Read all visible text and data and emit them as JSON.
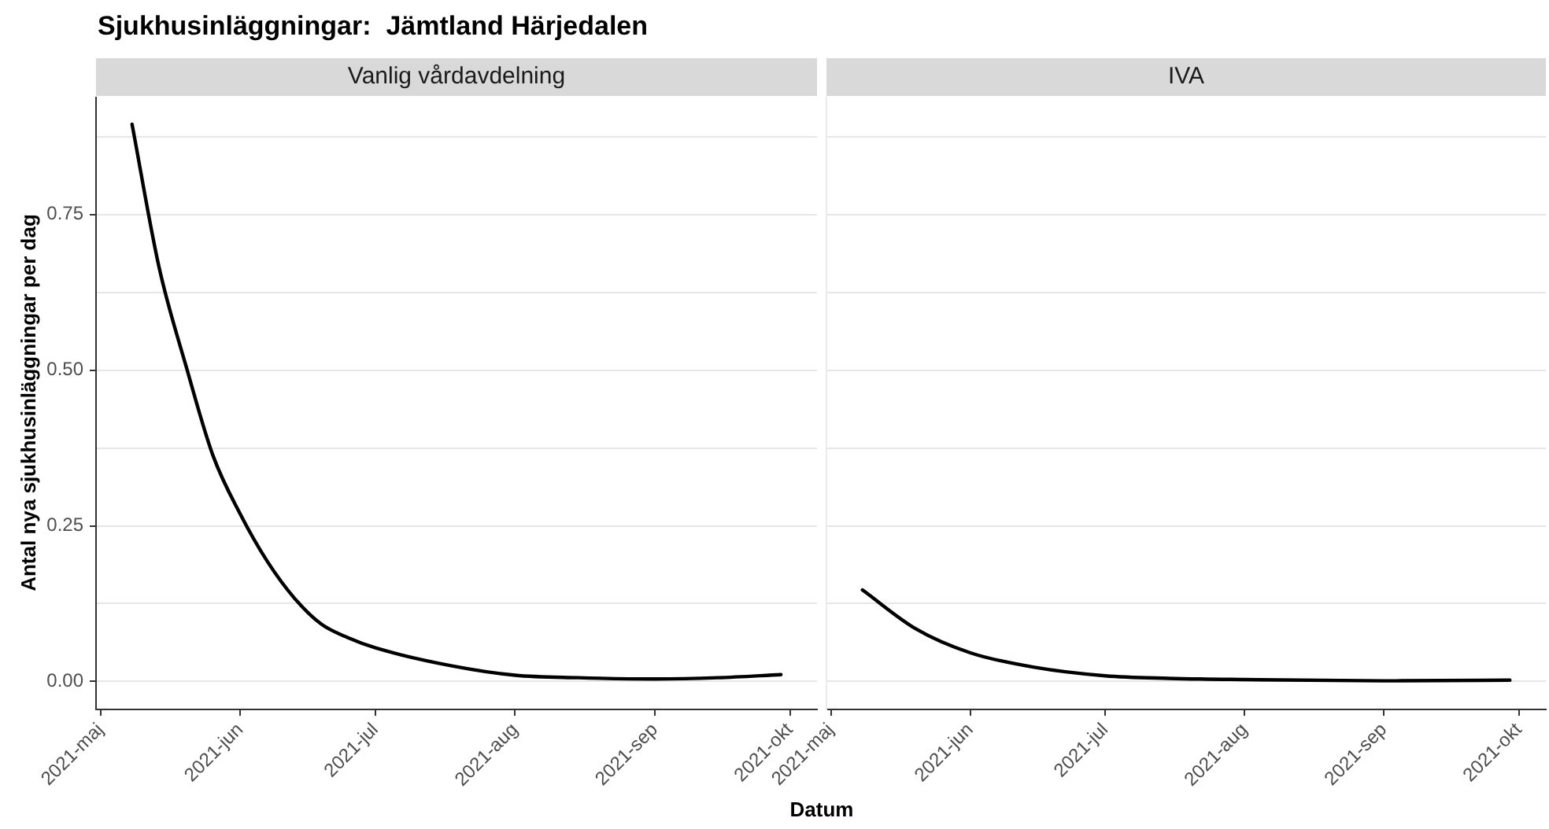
{
  "chart_data": [
    {
      "type": "line",
      "title": "Sjukhusinläggningar:  Jämtland Härjedalen",
      "subtitle": "Vanlig vårdavdelning",
      "ylabel": "Antal nya sjukhusinläggningar per dag",
      "xlabel": "Datum",
      "grid": "y",
      "legend": false,
      "marker": "none",
      "line_style": "solid",
      "xlim": [
        "2021-04-30",
        "2021-10-07"
      ],
      "ylim": [
        -0.045,
        0.938
      ],
      "xticks": [
        {
          "value": "2021-05-01",
          "label": "2021-maj"
        },
        {
          "value": "2021-06-01",
          "label": "2021-jun"
        },
        {
          "value": "2021-07-01",
          "label": "2021-jul"
        },
        {
          "value": "2021-08-01",
          "label": "2021-aug"
        },
        {
          "value": "2021-09-01",
          "label": "2021-sep"
        },
        {
          "value": "2021-10-01",
          "label": "2021-okt"
        }
      ],
      "yticks": [
        {
          "value": 0,
          "label": "0.00"
        },
        {
          "value": 0.125,
          "label": null
        },
        {
          "value": 0.25,
          "label": "0.25"
        },
        {
          "value": 0.375,
          "label": null
        },
        {
          "value": 0.5,
          "label": "0.50"
        },
        {
          "value": 0.625,
          "label": null
        },
        {
          "value": 0.75,
          "label": "0.75"
        },
        {
          "value": 0.875,
          "label": null
        }
      ],
      "series": [
        {
          "color": "#000000",
          "x": [
            "2021-05-08",
            "2021-05-14",
            "2021-05-20",
            "2021-05-26",
            "2021-06-01",
            "2021-06-07",
            "2021-06-13",
            "2021-06-19",
            "2021-06-25",
            "2021-07-01",
            "2021-07-18",
            "2021-08-01",
            "2021-08-15",
            "2021-09-01",
            "2021-09-15",
            "2021-09-29"
          ],
          "values": [
            0.895,
            0.665,
            0.506,
            0.362,
            0.269,
            0.193,
            0.134,
            0.092,
            0.07,
            0.054,
            0.025,
            0.01,
            0.006,
            0.004,
            0.006,
            0.011
          ]
        }
      ]
    },
    {
      "type": "line",
      "subtitle": "IVA",
      "grid": "y",
      "legend": false,
      "marker": "none",
      "line_style": "solid",
      "tick_labels": "x",
      "xlim": [
        "2021-04-30",
        "2021-10-07"
      ],
      "ylim": [
        -0.045,
        0.938
      ],
      "xticks": [
        {
          "value": "2021-05-01",
          "label": "2021-maj"
        },
        {
          "value": "2021-06-01",
          "label": "2021-jun"
        },
        {
          "value": "2021-07-01",
          "label": "2021-jul"
        },
        {
          "value": "2021-08-01",
          "label": "2021-aug"
        },
        {
          "value": "2021-09-01",
          "label": "2021-sep"
        },
        {
          "value": "2021-10-01",
          "label": "2021-okt"
        }
      ],
      "yticks": [
        {
          "value": 0,
          "label": null
        },
        {
          "value": 0.125,
          "label": null
        },
        {
          "value": 0.25,
          "label": null
        },
        {
          "value": 0.375,
          "label": null
        },
        {
          "value": 0.5,
          "label": null
        },
        {
          "value": 0.625,
          "label": null
        },
        {
          "value": 0.75,
          "label": null
        },
        {
          "value": 0.875,
          "label": null
        }
      ],
      "series": [
        {
          "color": "#000000",
          "x": [
            "2021-05-08",
            "2021-05-20",
            "2021-06-01",
            "2021-06-15",
            "2021-07-01",
            "2021-07-15",
            "2021-08-01",
            "2021-09-01",
            "2021-09-29"
          ],
          "values": [
            0.147,
            0.084,
            0.046,
            0.023,
            0.009,
            0.005,
            0.003,
            0.001,
            0.002
          ]
        }
      ]
    }
  ]
}
